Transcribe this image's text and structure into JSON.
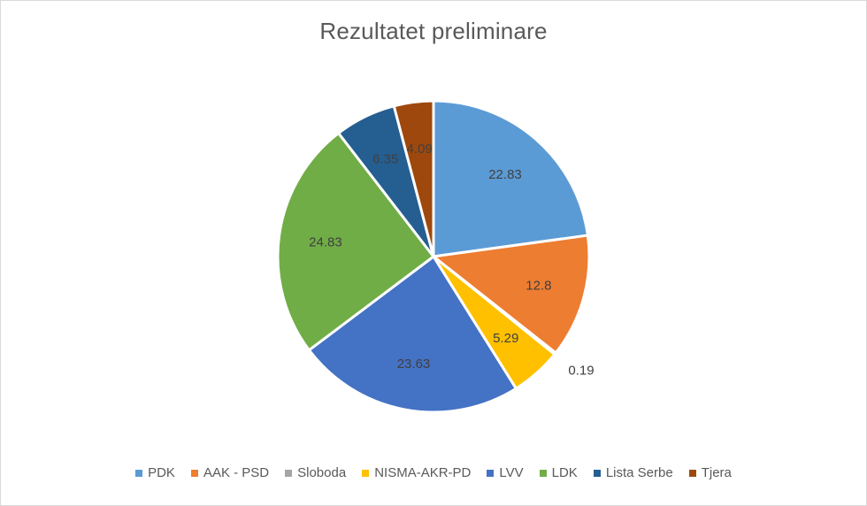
{
  "chart_data": {
    "type": "pie",
    "title": "Rezultatet preliminare",
    "legend_position": "bottom",
    "start_angle_deg": 0,
    "direction": "clockwise",
    "slices": [
      {
        "name": "PDK",
        "value": 22.83,
        "label": "22.83",
        "color": "#5b9bd5"
      },
      {
        "name": "AAK - PSD",
        "value": 12.8,
        "label": "12.8",
        "color": "#ed7d31"
      },
      {
        "name": "Sloboda",
        "value": 0.19,
        "label": "0.19",
        "color": "#a5a5a5"
      },
      {
        "name": "NISMA-AKR-PD",
        "value": 5.29,
        "label": "5.29",
        "color": "#ffc000"
      },
      {
        "name": "LVV",
        "value": 23.63,
        "label": "23.63",
        "color": "#4472c4"
      },
      {
        "name": "LDK",
        "value": 24.83,
        "label": "24.83",
        "color": "#70ad47"
      },
      {
        "name": "Lista Serbe",
        "value": 6.35,
        "label": "6.35",
        "color": "#255e91"
      },
      {
        "name": "Tjera",
        "value": 4.09,
        "label": "4.09",
        "color": "#9e480e"
      }
    ]
  }
}
